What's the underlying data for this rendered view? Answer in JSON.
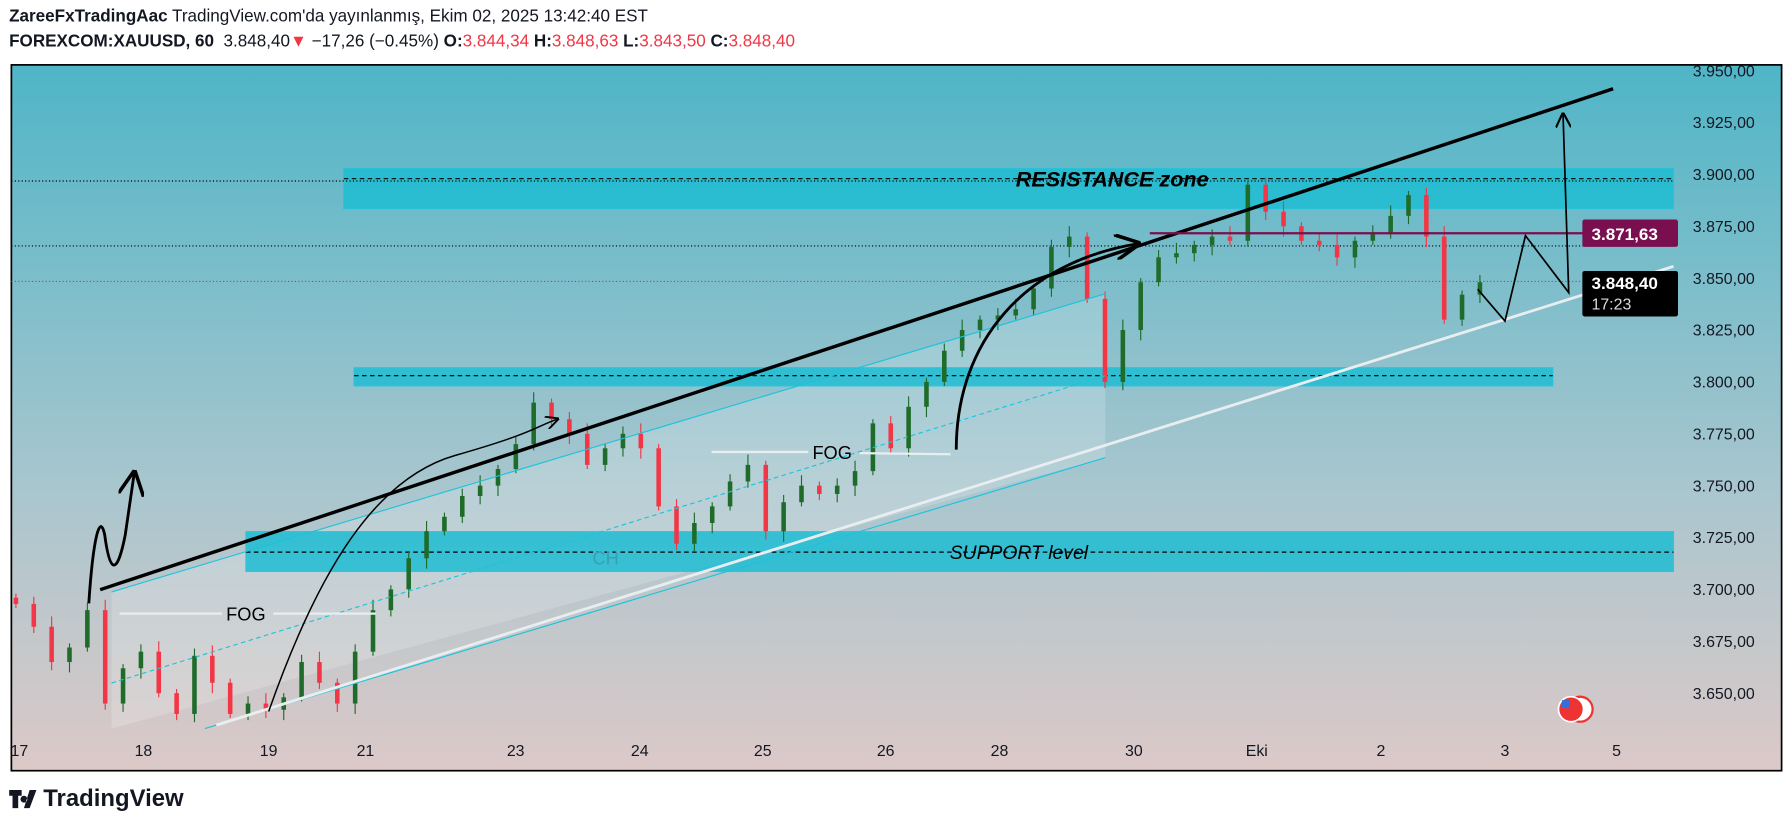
{
  "header": {
    "author": "ZareeFxTradingAac",
    "published": "TradingView.com'da yayınlanmış, Ekim 02, 2025 13:42:40 EST",
    "symbol": "FOREXCOM:XAUUSD, 60",
    "last": "3.848,40",
    "change": "−17,26 (−0.45%)",
    "o_label": "O:",
    "o": "3.844,34",
    "h_label": "H:",
    "h": "3.848,63",
    "l_label": "L:",
    "l": "3.843,50",
    "c_label": "C:",
    "c": "3.848,40"
  },
  "colors": {
    "up": "#1e6b2a",
    "down": "#f23645",
    "zone": "#1fbdd3",
    "resistance_line": "#7a0f4f",
    "bg_top": "#4fb5c7",
    "bg_bottom": "#dcc9c8"
  },
  "annotations": {
    "resistance": "RESISTANCE zone",
    "support": "SUPPORT level",
    "ch": "CH",
    "fog1": "FOG",
    "fog2": "FOG"
  },
  "price_labels": {
    "level": "3.871,63",
    "current": "3.848,40",
    "countdown": "17:23"
  },
  "footer": {
    "logo": "TradingView"
  },
  "chart_data": {
    "type": "candlestick",
    "symbol": "FOREXCOM:XAUUSD",
    "interval": "60",
    "ylim": [
      3635,
      3955
    ],
    "y_ticks": [
      "3.950,00",
      "3.925,00",
      "3.900,00",
      "3.875,00",
      "3.850,00",
      "3.825,00",
      "3.800,00",
      "3.775,00",
      "3.750,00",
      "3.725,00",
      "3.700,00",
      "3.675,00",
      "3.650,00"
    ],
    "y_tick_values": [
      3950,
      3925,
      3900,
      3875,
      3850,
      3825,
      3800,
      3775,
      3750,
      3725,
      3700,
      3675,
      3650
    ],
    "x_ticks": [
      "17",
      "18",
      "19",
      "21",
      "23",
      "24",
      "25",
      "26",
      "28",
      "30",
      "Eki",
      "2",
      "3",
      "5"
    ],
    "approx_closes": [
      3693,
      3682,
      3665,
      3672,
      3690,
      3645,
      3662,
      3670,
      3650,
      3640,
      3668,
      3655,
      3640,
      3645,
      3642,
      3648,
      3665,
      3655,
      3645,
      3670,
      3690,
      3700,
      3715,
      3728,
      3735,
      3745,
      3750,
      3758,
      3770,
      3790,
      3782,
      3775,
      3760,
      3768,
      3775,
      3768,
      3740,
      3722,
      3732,
      3740,
      3752,
      3760,
      3728,
      3742,
      3750,
      3746,
      3750,
      3757,
      3780,
      3768,
      3788,
      3800,
      3815,
      3825,
      3830,
      3832,
      3835,
      3845,
      3865,
      3870,
      3840,
      3800,
      3825,
      3848,
      3860,
      3862,
      3866,
      3870,
      3868,
      3895,
      3882,
      3875,
      3868,
      3866,
      3860,
      3868,
      3872,
      3880,
      3890,
      3870,
      3830,
      3842,
      3848
    ],
    "levels": {
      "resistance_zone": [
        3880,
        3900
      ],
      "support_zone": [
        3710,
        3730
      ],
      "mid_zone": [
        3801,
        3810
      ],
      "marked_level": 3871.63,
      "current_price": 3848.4
    }
  }
}
